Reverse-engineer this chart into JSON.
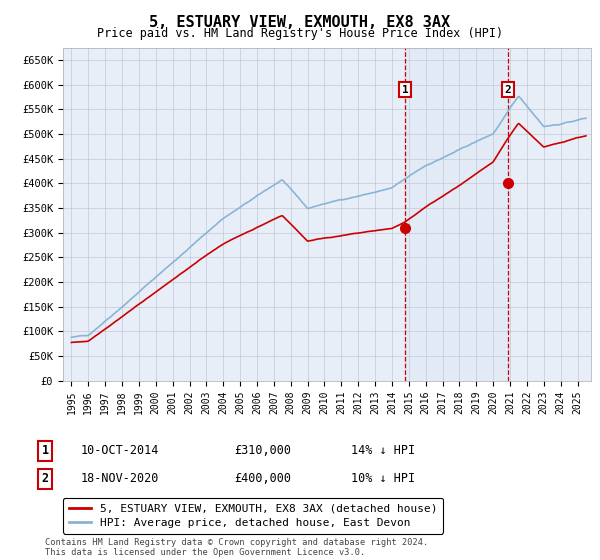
{
  "title": "5, ESTUARY VIEW, EXMOUTH, EX8 3AX",
  "subtitle": "Price paid vs. HM Land Registry's House Price Index (HPI)",
  "ylim": [
    0,
    675000
  ],
  "yticks": [
    0,
    50000,
    100000,
    150000,
    200000,
    250000,
    300000,
    350000,
    400000,
    450000,
    500000,
    550000,
    600000,
    650000
  ],
  "ytick_labels": [
    "£0",
    "£50K",
    "£100K",
    "£150K",
    "£200K",
    "£250K",
    "£300K",
    "£350K",
    "£400K",
    "£450K",
    "£500K",
    "£550K",
    "£600K",
    "£650K"
  ],
  "xtick_labels": [
    "1995",
    "1996",
    "1997",
    "1998",
    "1999",
    "2000",
    "2001",
    "2002",
    "2003",
    "2004",
    "2005",
    "2006",
    "2007",
    "2008",
    "2009",
    "2010",
    "2011",
    "2012",
    "2013",
    "2014",
    "2015",
    "2016",
    "2017",
    "2018",
    "2019",
    "2020",
    "2021",
    "2022",
    "2023",
    "2024",
    "2025"
  ],
  "hpi_color": "#8ab4d4",
  "price_color": "#cc0000",
  "vline_color": "#cc0000",
  "sale1_t": 2014.78,
  "sale1_price": 310000,
  "sale2_t": 2020.89,
  "sale2_price": 400000,
  "legend_house": "5, ESTUARY VIEW, EXMOUTH, EX8 3AX (detached house)",
  "legend_hpi": "HPI: Average price, detached house, East Devon",
  "annotation1_date": "10-OCT-2014",
  "annotation1_price": "£310,000",
  "annotation1_hpi": "14% ↓ HPI",
  "annotation2_date": "18-NOV-2020",
  "annotation2_price": "£400,000",
  "annotation2_hpi": "10% ↓ HPI",
  "footer": "Contains HM Land Registry data © Crown copyright and database right 2024.\nThis data is licensed under the Open Government Licence v3.0.",
  "plot_bg": "#e8eef8"
}
